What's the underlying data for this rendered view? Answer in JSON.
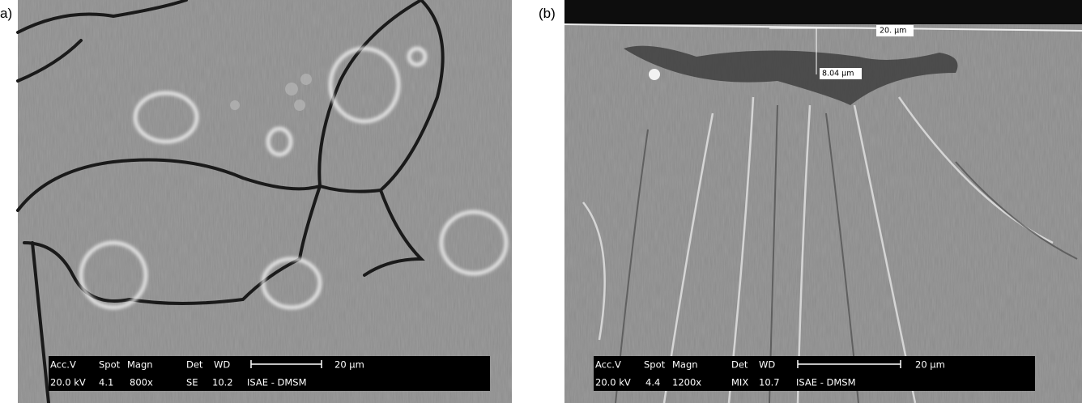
{
  "panels": [
    {
      "label": "a)",
      "info_bar": {
        "header": [
          "Acc.V",
          "Spot",
          "Magn",
          "Det",
          "WD"
        ],
        "values": [
          "20.0 kV",
          "4.1",
          "800x",
          "SE",
          "10.2",
          "ISAE - DMSM"
        ],
        "scale_bar": "20 µm"
      }
    },
    {
      "label": "(b)",
      "info_bar": {
        "header": [
          "Acc.V",
          "Spot",
          "Magn",
          "Det",
          "WD"
        ],
        "values": [
          "20.0 kV",
          "4.4",
          "1200x",
          "MIX",
          "10.7",
          "ISAE - DMSM"
        ],
        "scale_bar": "20 µm"
      },
      "annotations": [
        "20. µm",
        "8.04 µm"
      ]
    }
  ]
}
